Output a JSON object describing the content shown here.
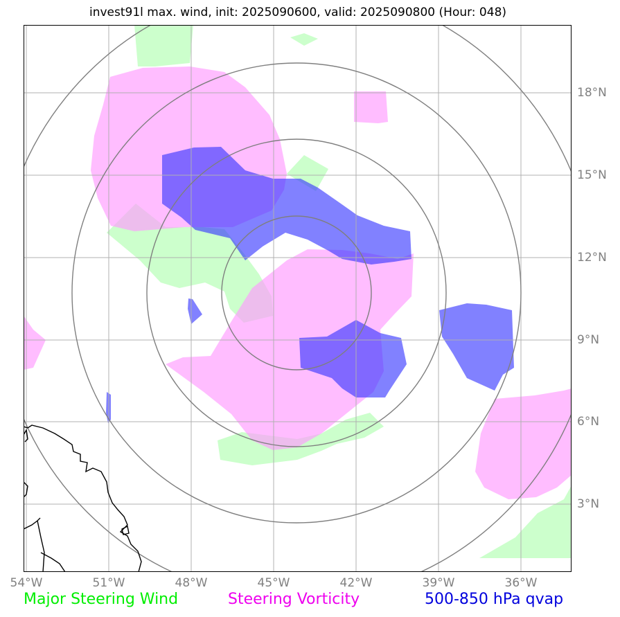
{
  "title": "invest91l max. wind, init: 2025090600, valid: 2025090800 (Hour: 048)",
  "longitude_labels": [
    "54°W",
    "51°W",
    "48°W",
    "45°W",
    "42°W",
    "39°W",
    "36°W"
  ],
  "latitude_labels": [
    "18°N",
    "15°N",
    "12°N",
    "9°N",
    "6°N",
    "3°N"
  ],
  "legend": {
    "wind": "Major Steering Wind",
    "vorticity": "Steering Vorticity",
    "qvap": "500-850 hPa qvap"
  },
  "colors": {
    "wind_fill": "#ccffcc",
    "vorticity_fill": "#ff99ff",
    "qvap_fill": "#3333ff",
    "wind_text": "#00ee00",
    "vorticity_text": "#ee00ee",
    "qvap_text": "#0000dd",
    "grid": "#b0b0b0",
    "rings": "#7f7f7f",
    "coast": "#000000"
  }
}
